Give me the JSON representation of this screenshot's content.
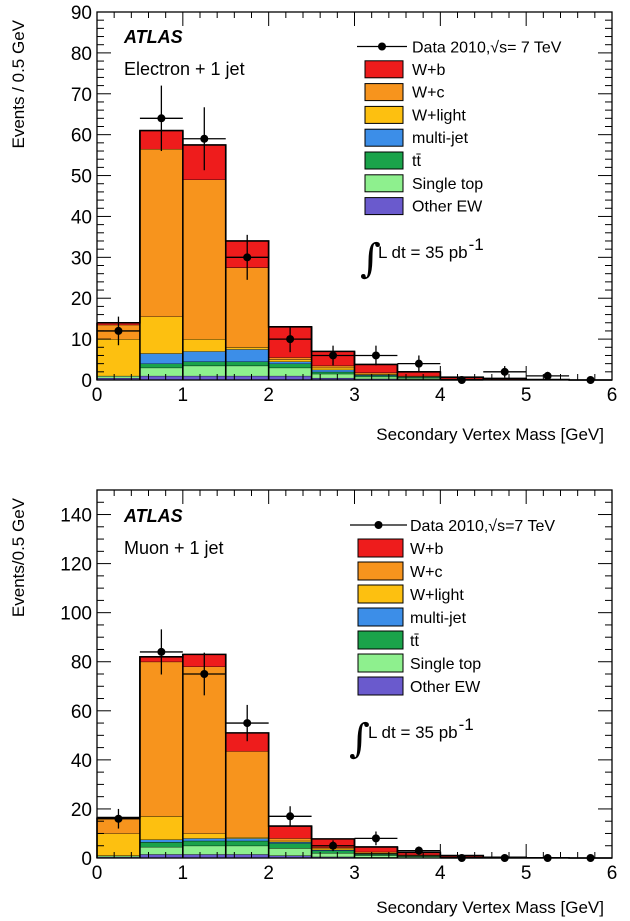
{
  "colors": {
    "W+b": "#ee1c1c",
    "W+c": "#f7941d",
    "W+light": "#fdc010",
    "multi-jet": "#3c8ee8",
    "ttbar": "#1aa34a",
    "Single top": "#8ef08e",
    "Other EW": "#6a5acd",
    "data": "#000000"
  },
  "chart_data": [
    {
      "type": "bar",
      "stacked": true,
      "experiment": "ATLAS",
      "channel": "Electron + 1 jet",
      "xlabel": "Secondary Vertex Mass [GeV]",
      "ylabel": "Events / 0.5 GeV",
      "xlim": [
        0,
        6
      ],
      "ylim": [
        0,
        90
      ],
      "x_ticks": [
        "0",
        "1",
        "2",
        "3",
        "4",
        "5",
        "6"
      ],
      "y_ticks": [
        "0",
        "10",
        "20",
        "30",
        "40",
        "50",
        "60",
        "70",
        "80",
        "90"
      ],
      "legend_position": "top-right",
      "lumi_text": "L dt = 35 pb",
      "lumi_superscript": "-1",
      "bin_edges": [
        0,
        0.5,
        1.0,
        1.5,
        2.0,
        2.5,
        3.0,
        3.5,
        4.0,
        4.5,
        5.0,
        5.5,
        6.0
      ],
      "series": [
        {
          "name": "Other EW",
          "key": "Other EW",
          "values": [
            0.5,
            1.0,
            1.0,
            1.0,
            1.0,
            0.5,
            0.3,
            0.2,
            0.1,
            0.1,
            0.0,
            0.0
          ]
        },
        {
          "name": "Single top",
          "key": "Single top",
          "values": [
            0.5,
            2.0,
            2.5,
            2.5,
            2.0,
            1.0,
            0.5,
            0.3,
            0.1,
            0.1,
            0.0,
            0.0
          ]
        },
        {
          "name": "tt̄",
          "key": "ttbar",
          "values": [
            0.0,
            1.0,
            1.0,
            1.0,
            1.0,
            0.5,
            0.3,
            0.2,
            0.1,
            0.0,
            0.0,
            0.0
          ]
        },
        {
          "name": "multi-jet",
          "key": "multi-jet",
          "values": [
            0.0,
            2.5,
            2.5,
            3.0,
            0.5,
            0.5,
            0.2,
            0.1,
            0.0,
            0.0,
            0.0,
            0.0
          ]
        },
        {
          "name": "W+light",
          "key": "W+light",
          "values": [
            9.0,
            9.0,
            3.0,
            0.5,
            0.5,
            0.5,
            0.2,
            0.1,
            0.0,
            0.0,
            0.0,
            0.0
          ]
        },
        {
          "name": "W+c",
          "key": "W+c",
          "values": [
            3.5,
            41.0,
            39.0,
            19.5,
            0.5,
            0.5,
            0.3,
            0.1,
            0.0,
            0.0,
            0.0,
            0.0
          ]
        },
        {
          "name": "W+b",
          "key": "W+b",
          "values": [
            0.5,
            4.5,
            8.5,
            6.5,
            7.5,
            3.5,
            2.0,
            1.0,
            0.4,
            0.2,
            0.1,
            0.0
          ]
        }
      ],
      "data_series": {
        "name": "Data 2010,√s= 7 TeV",
        "x": [
          0.25,
          0.75,
          1.25,
          1.75,
          2.25,
          2.75,
          3.25,
          3.75,
          4.25,
          4.75,
          5.25,
          5.75
        ],
        "y": [
          12,
          64,
          59,
          30,
          10,
          6,
          6,
          4,
          0,
          2,
          1,
          0
        ],
        "yerr": [
          3.5,
          8.0,
          7.7,
          5.5,
          3.2,
          2.4,
          2.4,
          2.0,
          0.5,
          1.4,
          1.0,
          0.5
        ]
      }
    },
    {
      "type": "bar",
      "stacked": true,
      "experiment": "ATLAS",
      "channel": "Muon + 1 jet",
      "xlabel": "Secondary Vertex Mass [GeV]",
      "ylabel": "Events/0.5 GeV",
      "xlim": [
        0,
        6
      ],
      "ylim": [
        0,
        150
      ],
      "x_ticks": [
        "0",
        "1",
        "2",
        "3",
        "4",
        "5",
        "6"
      ],
      "y_ticks": [
        "0",
        "20",
        "40",
        "60",
        "80",
        "100",
        "120",
        "140"
      ],
      "legend_position": "top-right",
      "lumi_text": "L dt = 35 pb",
      "lumi_superscript": "-1",
      "bin_edges": [
        0,
        0.5,
        1.0,
        1.5,
        2.0,
        2.5,
        3.0,
        3.5,
        4.0,
        4.5,
        5.0,
        5.5,
        6.0
      ],
      "series": [
        {
          "name": "Other EW",
          "key": "Other EW",
          "values": [
            0.5,
            1.5,
            1.5,
            1.5,
            1.0,
            0.5,
            0.3,
            0.2,
            0.1,
            0.0,
            0.0,
            0.0
          ]
        },
        {
          "name": "Single top",
          "key": "Single top",
          "values": [
            0.5,
            3.0,
            3.5,
            3.5,
            3.0,
            1.5,
            0.8,
            0.4,
            0.2,
            0.1,
            0.0,
            0.0
          ]
        },
        {
          "name": "tt̄",
          "key": "ttbar",
          "values": [
            0.0,
            2.0,
            2.0,
            2.0,
            2.0,
            1.0,
            0.5,
            0.3,
            0.1,
            0.0,
            0.0,
            0.0
          ]
        },
        {
          "name": "multi-jet",
          "key": "multi-jet",
          "values": [
            0.0,
            1.0,
            1.0,
            1.0,
            0.5,
            0.3,
            0.2,
            0.1,
            0.0,
            0.0,
            0.0,
            0.0
          ]
        },
        {
          "name": "W+light",
          "key": "W+light",
          "values": [
            9.0,
            9.5,
            2.0,
            0.5,
            0.5,
            0.5,
            0.2,
            0.1,
            0.0,
            0.0,
            0.0,
            0.0
          ]
        },
        {
          "name": "W+c",
          "key": "W+c",
          "values": [
            6.0,
            63.0,
            68.0,
            35.0,
            1.0,
            0.5,
            0.5,
            0.2,
            0.1,
            0.0,
            0.0,
            0.0
          ]
        },
        {
          "name": "W+b",
          "key": "W+b",
          "values": [
            0.5,
            2.0,
            5.0,
            7.5,
            5.0,
            3.5,
            2.0,
            1.0,
            0.5,
            0.2,
            0.1,
            0.0
          ]
        }
      ],
      "data_series": {
        "name": "Data 2010,√s=7 TeV",
        "x": [
          0.25,
          0.75,
          1.25,
          1.75,
          2.25,
          2.75,
          3.25,
          3.75,
          4.25,
          4.75,
          5.25,
          5.75
        ],
        "y": [
          16,
          84,
          75,
          55,
          17,
          5,
          8,
          3,
          0,
          0,
          0,
          0
        ],
        "yerr": [
          4.0,
          9.2,
          8.7,
          7.4,
          4.1,
          2.2,
          2.8,
          1.7,
          0.5,
          0.5,
          0.5,
          0.5
        ]
      }
    }
  ]
}
